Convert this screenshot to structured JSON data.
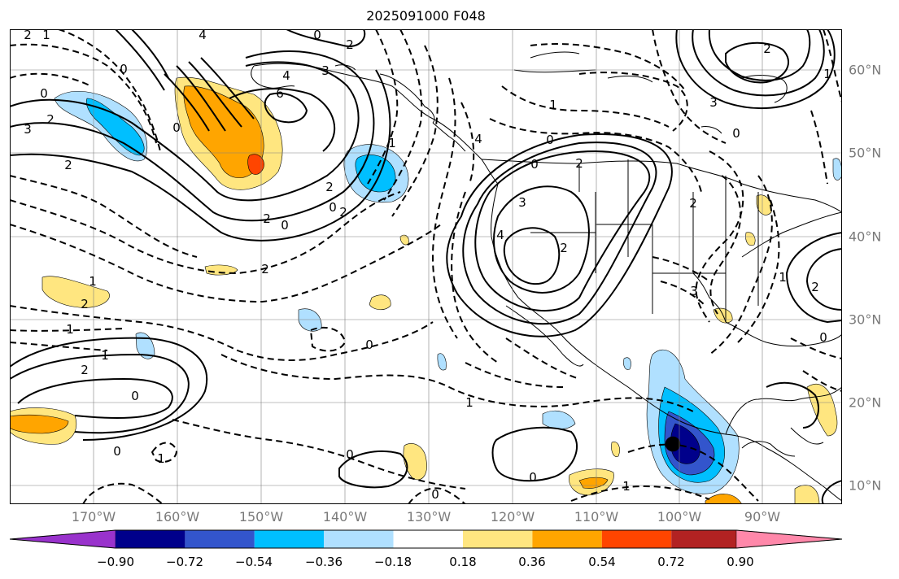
{
  "title": "2025091000 F048",
  "lon_labels": [
    "170°W",
    "160°W",
    "150°W",
    "140°W",
    "130°W",
    "120°W",
    "110°W",
    "100°W",
    "90°W"
  ],
  "lat_labels": [
    "60°N",
    "50°N",
    "40°N",
    "30°N",
    "20°N",
    "10°N"
  ],
  "colorbar": {
    "ticks": [
      "−0.90",
      "−0.72",
      "−0.54",
      "−0.36",
      "−0.18",
      "0.18",
      "0.36",
      "0.54",
      "0.72",
      "0.90"
    ],
    "colors": [
      "#9932cc",
      "#00008b",
      "#3355cc",
      "#00bfff",
      "#b0e0ff",
      "#ffffff",
      "#ffe680",
      "#ffa500",
      "#ff4500",
      "#b22222",
      "#ff88aa"
    ]
  },
  "contour_labels": [
    "0",
    "2",
    "1",
    "2",
    "4",
    "6",
    "0",
    "3",
    "2",
    "4",
    "2",
    "1",
    "2",
    "1",
    "0",
    "0",
    "2",
    "3",
    "2",
    "1",
    "4",
    "3",
    "2",
    "0",
    "0",
    "2",
    "0",
    "0",
    "2",
    "1",
    "0",
    "1",
    "0",
    "1",
    "0",
    "2",
    "1",
    "3",
    "2",
    "0",
    "1",
    "2",
    "1",
    "0",
    "1",
    "0",
    "2",
    "4",
    "2",
    "3",
    "0",
    "0"
  ],
  "fill_colors": {
    "pos1": "#ffe680",
    "pos2": "#ffa500",
    "pos3": "#ff4500",
    "neg1": "#b0e0ff",
    "neg2": "#00bfff",
    "neg3": "#3355cc",
    "neg4": "#00008b"
  }
}
